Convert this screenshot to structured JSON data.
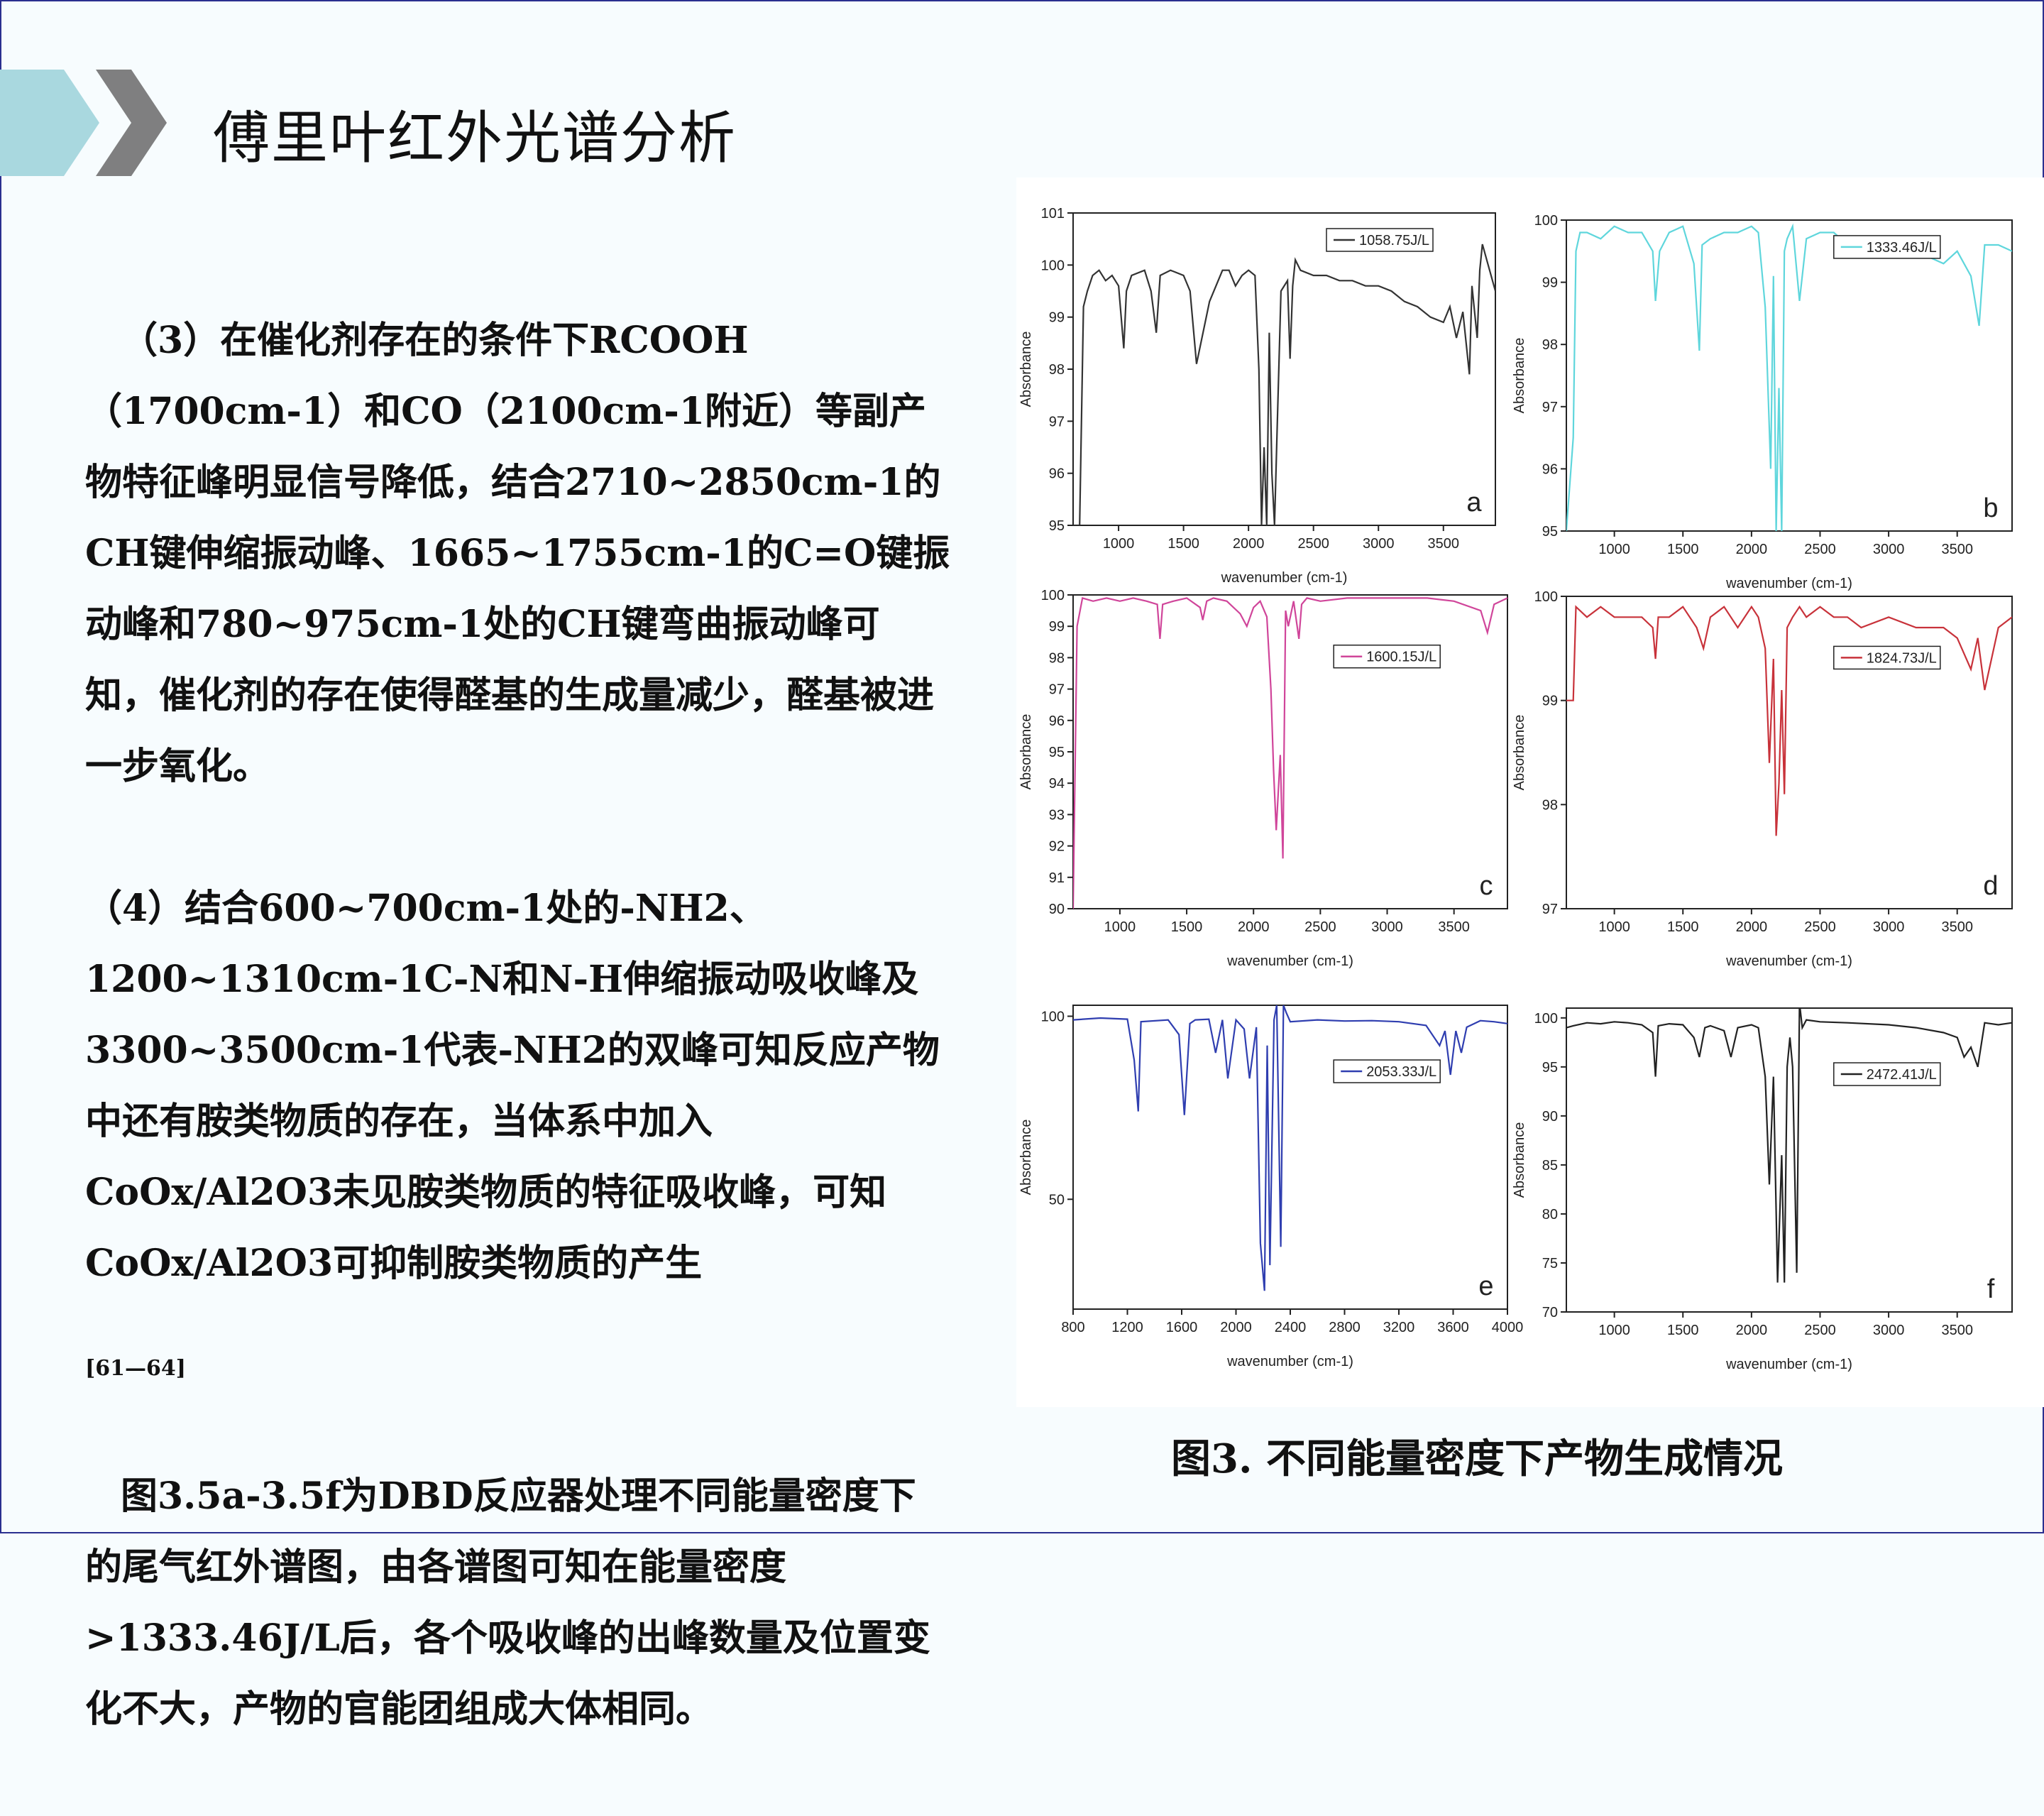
{
  "slide": {
    "title": "傅里叶红外光谱分析",
    "paragraphs": [
      "（3）在催化剂存在的条件下RCOOH（1700cm-1）和CO（2100cm-1附近）等副产物特征峰明显信号降低，结合2710~2850cm-1的CH键伸缩振动峰、1665~1755cm-1的C=O键振动峰和780~975cm-1处的CH键弯曲振动峰可知，催化剂的存在使得醛基的生成量减少，醛基被进一步氧化。",
      "（4）结合600~700cm-1处的-NH2、1200~1310cm-1C-N和N-H伸缩振动吸收峰及3300~3500cm-1代表-NH2的双峰可知反应产物中还有胺类物质的存在，当体系中加入CoOx/Al2O3未见胺类物质的特征吸收峰，可知CoOx/Al2O3可抑制胺类物质的产生",
      "图3.5a-3.5f为DBD反应器处理不同能量密度下的尾气红外谱图，由各谱图可知在能量密度>1333.46J/L后，各个吸收峰的出峰数量及位置变化不大，产物的官能团组成大体相同。"
    ],
    "reference": "[61—64]",
    "caption": "图3. 不同能量密度下产物生成情况"
  },
  "chart_data": [
    {
      "type": "line",
      "panel": "a",
      "xlabel": "wavenumber (cm-1)",
      "ylabel": "Absorbance",
      "series": [
        {
          "name": "1058.75J/L",
          "color": "#333333"
        }
      ],
      "xlim": [
        650,
        3900
      ],
      "ylim": [
        95,
        101
      ],
      "xticks": [
        1000,
        1500,
        2000,
        2500,
        3000,
        3500
      ],
      "yticks": [
        95,
        96,
        97,
        98,
        99,
        100,
        101
      ],
      "x": [
        650,
        700,
        730,
        760,
        800,
        850,
        900,
        950,
        1000,
        1040,
        1060,
        1100,
        1200,
        1250,
        1290,
        1320,
        1400,
        1500,
        1550,
        1600,
        1700,
        1800,
        1850,
        1900,
        1950,
        2000,
        2050,
        2080,
        2100,
        2120,
        2140,
        2160,
        2180,
        2200,
        2220,
        2250,
        2300,
        2320,
        2340,
        2360,
        2400,
        2500,
        2600,
        2700,
        2800,
        2900,
        3000,
        3100,
        3200,
        3300,
        3400,
        3500,
        3550,
        3600,
        3650,
        3700,
        3720,
        3760,
        3780,
        3800,
        3900
      ],
      "y": [
        95,
        95,
        99.2,
        99.5,
        99.8,
        99.9,
        99.7,
        99.8,
        99.6,
        98.4,
        99.5,
        99.8,
        99.9,
        99.5,
        98.7,
        99.8,
        99.9,
        99.8,
        99.5,
        98.1,
        99.3,
        99.9,
        99.9,
        99.6,
        99.8,
        99.9,
        99.8,
        98.0,
        95.0,
        96.5,
        95.0,
        98.7,
        96.0,
        95.0,
        96.8,
        99.5,
        99.7,
        98.2,
        99.6,
        100.1,
        99.9,
        99.8,
        99.8,
        99.7,
        99.7,
        99.6,
        99.6,
        99.5,
        99.3,
        99.2,
        99.0,
        98.9,
        99.2,
        98.6,
        99.1,
        97.9,
        99.6,
        98.6,
        99.9,
        100.4,
        99.5
      ]
    },
    {
      "type": "line",
      "panel": "b",
      "xlabel": "wavenumber (cm-1)",
      "ylabel": "Absorbance",
      "series": [
        {
          "name": "1333.46J/L",
          "color": "#5fd6dc"
        }
      ],
      "xlim": [
        650,
        3900
      ],
      "ylim": [
        95,
        100
      ],
      "xticks": [
        1000,
        1500,
        2000,
        2500,
        3000,
        3500
      ],
      "yticks": [
        95,
        96,
        97,
        98,
        99,
        100
      ],
      "x": [
        650,
        700,
        720,
        750,
        800,
        900,
        1000,
        1100,
        1200,
        1280,
        1300,
        1330,
        1400,
        1500,
        1580,
        1620,
        1640,
        1700,
        1800,
        1900,
        2000,
        2050,
        2100,
        2140,
        2160,
        2180,
        2200,
        2220,
        2240,
        2260,
        2300,
        2350,
        2400,
        2500,
        2600,
        2700,
        2800,
        2900,
        3000,
        3100,
        3200,
        3300,
        3400,
        3500,
        3600,
        3660,
        3700,
        3800,
        3900
      ],
      "y": [
        95,
        96.5,
        99.5,
        99.8,
        99.8,
        99.7,
        99.9,
        99.8,
        99.8,
        99.5,
        98.7,
        99.5,
        99.8,
        99.9,
        99.3,
        97.9,
        99.6,
        99.7,
        99.8,
        99.8,
        99.9,
        99.8,
        98.6,
        96.0,
        99.1,
        95.0,
        97.3,
        95.0,
        99.5,
        99.7,
        99.9,
        98.7,
        99.7,
        99.8,
        99.8,
        99.6,
        99.5,
        99.6,
        99.6,
        99.5,
        99.4,
        99.4,
        99.3,
        99.5,
        99.1,
        98.3,
        99.6,
        99.6,
        99.5
      ]
    },
    {
      "type": "line",
      "panel": "c",
      "xlabel": "wavenumber (cm-1)",
      "ylabel": "Absorbance",
      "series": [
        {
          "name": "1600.15J/L",
          "color": "#d0459a"
        }
      ],
      "xlim": [
        650,
        3900
      ],
      "ylim": [
        90,
        100
      ],
      "xticks": [
        1000,
        1500,
        2000,
        2500,
        3000,
        3500
      ],
      "yticks": [
        90,
        91,
        92,
        93,
        94,
        95,
        96,
        97,
        98,
        99,
        100
      ],
      "x": [
        650,
        680,
        720,
        800,
        900,
        1000,
        1100,
        1200,
        1280,
        1300,
        1320,
        1400,
        1500,
        1600,
        1620,
        1650,
        1700,
        1800,
        1900,
        1950,
        2000,
        2050,
        2100,
        2130,
        2150,
        2170,
        2200,
        2220,
        2240,
        2260,
        2300,
        2340,
        2360,
        2400,
        2500,
        2700,
        3000,
        3300,
        3500,
        3700,
        3750,
        3800,
        3900
      ],
      "y": [
        90,
        99.0,
        99.9,
        99.8,
        99.9,
        99.8,
        99.9,
        99.8,
        99.7,
        98.6,
        99.7,
        99.8,
        99.9,
        99.6,
        99.2,
        99.8,
        99.9,
        99.8,
        99.4,
        99.0,
        99.6,
        99.8,
        99.3,
        97.0,
        94.4,
        92.5,
        94.9,
        91.6,
        99.5,
        99.0,
        99.8,
        98.6,
        99.7,
        99.9,
        99.8,
        99.9,
        99.9,
        99.9,
        99.8,
        99.5,
        98.8,
        99.7,
        99.9
      ]
    },
    {
      "type": "line",
      "panel": "d",
      "xlabel": "wavenumber (cm-1)",
      "ylabel": "Absorbance",
      "series": [
        {
          "name": "1824.73J/L",
          "color": "#c8323a"
        }
      ],
      "xlim": [
        650,
        3900
      ],
      "ylim": [
        97,
        100
      ],
      "xticks": [
        1000,
        1500,
        2000,
        2500,
        3000,
        3500
      ],
      "yticks": [
        97,
        98,
        99,
        100
      ],
      "x": [
        650,
        700,
        720,
        800,
        900,
        1000,
        1100,
        1200,
        1280,
        1300,
        1320,
        1400,
        1500,
        1600,
        1650,
        1700,
        1800,
        1900,
        2000,
        2050,
        2100,
        2130,
        2160,
        2180,
        2200,
        2220,
        2240,
        2260,
        2300,
        2350,
        2400,
        2500,
        2600,
        2700,
        2800,
        3000,
        3200,
        3400,
        3500,
        3600,
        3650,
        3700,
        3800,
        3900
      ],
      "y": [
        99,
        99.0,
        99.9,
        99.8,
        99.9,
        99.8,
        99.8,
        99.8,
        99.7,
        99.4,
        99.8,
        99.8,
        99.9,
        99.7,
        99.5,
        99.8,
        99.9,
        99.7,
        99.9,
        99.8,
        99.5,
        98.4,
        99.4,
        97.7,
        98.2,
        99.1,
        98.1,
        99.7,
        99.8,
        99.9,
        99.8,
        99.9,
        99.8,
        99.8,
        99.7,
        99.8,
        99.7,
        99.7,
        99.6,
        99.3,
        99.6,
        99.1,
        99.7,
        99.8
      ]
    },
    {
      "type": "line",
      "panel": "e",
      "xlabel": "wavenumber (cm-1)",
      "ylabel": "Absorbance",
      "series": [
        {
          "name": "2053.33J/L",
          "color": "#2f3eb0"
        }
      ],
      "xlim": [
        800,
        4000
      ],
      "ylim": [
        20,
        103
      ],
      "xticks": [
        800,
        1200,
        1600,
        2000,
        2400,
        2800,
        3200,
        3600,
        4000
      ],
      "yticks": [
        50,
        100
      ],
      "x": [
        800,
        1000,
        1200,
        1250,
        1280,
        1300,
        1500,
        1580,
        1620,
        1660,
        1700,
        1800,
        1850,
        1900,
        1940,
        2000,
        2060,
        2100,
        2150,
        2180,
        2210,
        2230,
        2250,
        2280,
        2300,
        2330,
        2350,
        2370,
        2400,
        2600,
        2800,
        3000,
        3200,
        3400,
        3500,
        3540,
        3580,
        3620,
        3660,
        3700,
        3800,
        3900,
        4000
      ],
      "y": [
        99,
        99.5,
        99.2,
        88,
        74,
        98.5,
        99.0,
        95,
        73,
        98,
        99,
        99.2,
        90,
        99,
        83,
        99,
        96.5,
        83,
        97,
        38,
        25,
        92,
        32,
        99,
        103,
        37,
        103,
        101,
        98.5,
        99.0,
        98.7,
        98.8,
        98.5,
        97.5,
        92,
        96,
        84,
        96,
        90,
        97,
        98.8,
        98.5,
        98.0
      ]
    },
    {
      "type": "line",
      "panel": "f",
      "xlabel": "wavenumber (cm-1)",
      "ylabel": "Absorbance",
      "series": [
        {
          "name": "2472.41J/L",
          "color": "#222222"
        }
      ],
      "xlim": [
        650,
        3900
      ],
      "ylim": [
        70,
        101
      ],
      "xticks": [
        1000,
        1500,
        2000,
        2500,
        3000,
        3500
      ],
      "yticks": [
        70,
        75,
        80,
        85,
        90,
        95,
        100
      ],
      "x": [
        650,
        700,
        800,
        900,
        1000,
        1100,
        1200,
        1280,
        1300,
        1320,
        1400,
        1500,
        1580,
        1620,
        1660,
        1700,
        1800,
        1850,
        1900,
        2000,
        2050,
        2100,
        2130,
        2160,
        2190,
        2220,
        2240,
        2260,
        2280,
        2300,
        2330,
        2350,
        2370,
        2400,
        2500,
        2700,
        3000,
        3200,
        3400,
        3500,
        3550,
        3600,
        3650,
        3700,
        3800,
        3900
      ],
      "y": [
        99,
        99.2,
        99.5,
        99.4,
        99.6,
        99.5,
        99.3,
        98.5,
        94,
        99.2,
        99.4,
        99.3,
        98,
        96,
        99,
        99.2,
        98.7,
        96,
        99.0,
        99.3,
        99.0,
        94,
        83,
        94,
        73,
        86,
        73,
        95,
        98,
        95,
        74,
        101.5,
        99,
        99.8,
        99.6,
        99.5,
        99.3,
        99.0,
        98.5,
        98.0,
        96,
        97,
        95,
        99.5,
        99.3,
        99.5
      ]
    }
  ]
}
